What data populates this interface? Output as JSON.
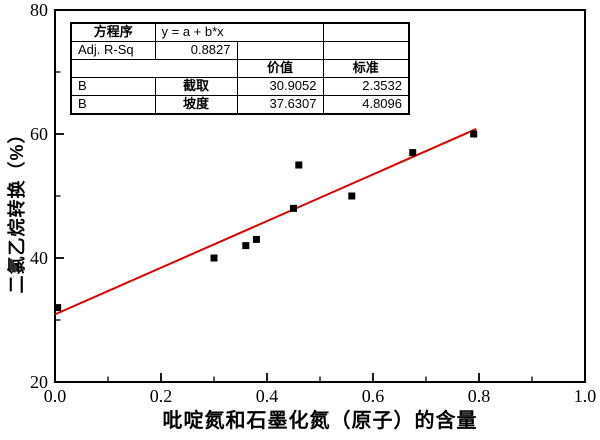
{
  "figure": {
    "background": "#ffffff",
    "x_axis_label": "吡啶氮和石墨化氮（原子）的含量",
    "y_axis_label": "二氯乙烷转换（%）"
  },
  "stats_table": {
    "rows": [
      [
        "方程序",
        "y = a + b*x",
        "",
        ""
      ],
      [
        "Adj. R-Sq",
        "0.8827",
        "",
        ""
      ],
      [
        "",
        "",
        "价值",
        "标准"
      ],
      [
        "B",
        "截取",
        "30.9052",
        "2.3532"
      ],
      [
        "B",
        "坡度",
        "37.6307",
        "4.8096"
      ]
    ]
  },
  "chart_data": {
    "type": "scatter",
    "title": "",
    "xlabel": "吡啶氮和石墨化氮（原子）的含量",
    "ylabel": "二氯乙烷转换（%）",
    "xlim": [
      0.0,
      1.0
    ],
    "ylim": [
      20,
      80
    ],
    "grid": false,
    "legend_position": "none",
    "x_tick_values": [
      0.0,
      0.2,
      0.4,
      0.6,
      0.8,
      1.0
    ],
    "x_tick_labels": [
      "0.0",
      "0.2",
      "0.4",
      "0.6",
      "0.8",
      "1.0"
    ],
    "x_minor_ticks": [
      0.1,
      0.3,
      0.5,
      0.7,
      0.9
    ],
    "y_tick_values": [
      20,
      40,
      60,
      80
    ],
    "y_tick_labels": [
      "20",
      "40",
      "60",
      "80"
    ],
    "y_minor_ticks": [
      30,
      50,
      70
    ],
    "points": [
      [
        0.005,
        32
      ],
      [
        0.3,
        40
      ],
      [
        0.36,
        42
      ],
      [
        0.38,
        43
      ],
      [
        0.45,
        48
      ],
      [
        0.46,
        55
      ],
      [
        0.56,
        50
      ],
      [
        0.675,
        57
      ],
      [
        0.79,
        60
      ]
    ],
    "marker": {
      "shape": "square",
      "color": "#000000",
      "size": 7
    },
    "fit_line": {
      "equation": "y = a + b*x",
      "intercept": 30.9052,
      "intercept_std_error": 2.3532,
      "slope": 37.6307,
      "slope_std_error": 4.8096,
      "adj_r_sq": 0.8827,
      "x_start": 0.0,
      "x_end": 0.795,
      "color": "#dd0000",
      "width": 2
    },
    "axis_color": "#000000"
  }
}
